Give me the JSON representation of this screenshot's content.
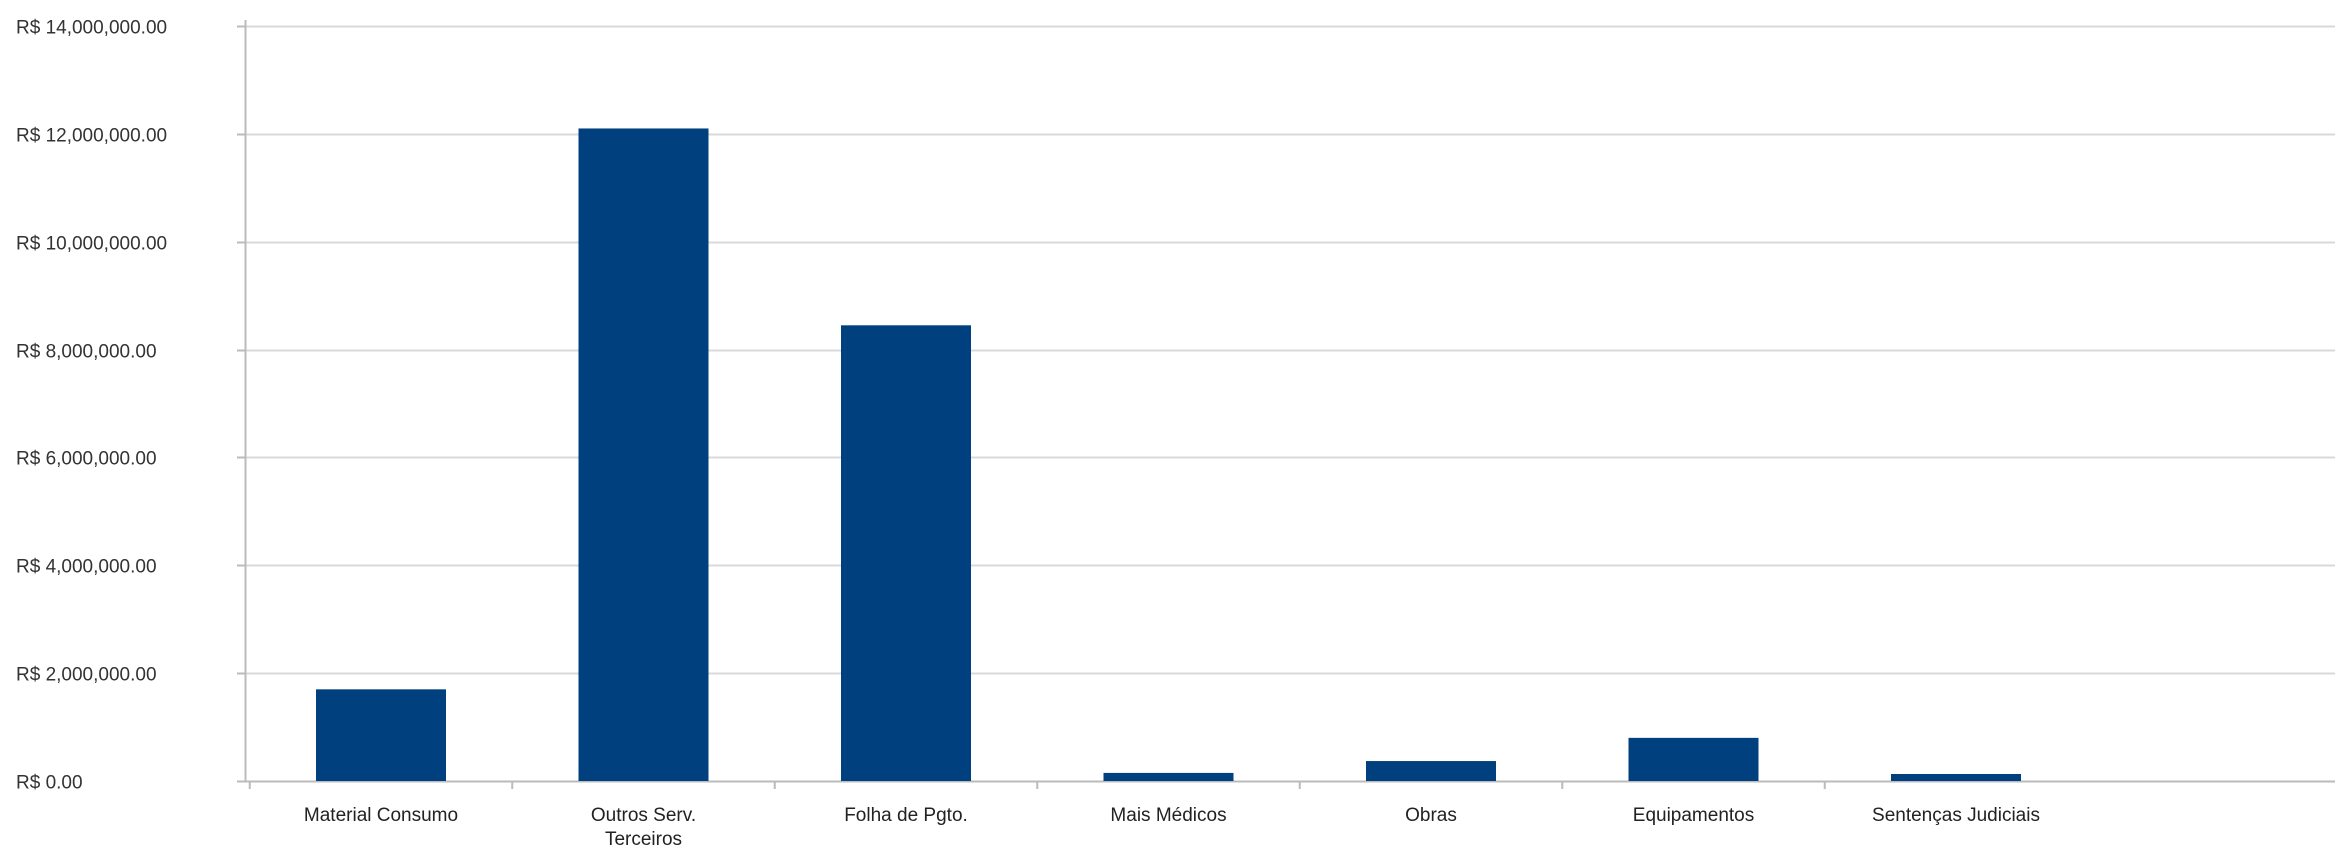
{
  "chart_data": {
    "type": "bar",
    "title": "",
    "xlabel": "",
    "ylabel": "",
    "categories": [
      [
        "Material Consumo"
      ],
      [
        "Outros Serv.",
        "Terceiros"
      ],
      [
        "Folha de Pgto."
      ],
      [
        "Mais Médicos"
      ],
      [
        "Obras"
      ],
      [
        "Equipamentos"
      ],
      [
        "Sentenças Judiciais"
      ]
    ],
    "values": [
      1700000,
      12100000,
      8450000,
      150000,
      370000,
      800000,
      130000
    ],
    "ylim": [
      0,
      14000000
    ],
    "yticks": [
      0,
      2000000,
      4000000,
      6000000,
      8000000,
      10000000,
      12000000,
      14000000
    ],
    "ytick_labels": [
      "R$ 0.00",
      "R$ 2,000,000.00",
      "R$ 4,000,000.00",
      "R$ 6,000,000.00",
      "R$ 8,000,000.00",
      "R$ 10,000,000.00",
      "R$ 12,000,000.00",
      "R$ 14,000,000.00"
    ],
    "grid": true,
    "legend": "none",
    "bar_color": "#00407f",
    "grid_color": "#d9d9d9"
  }
}
